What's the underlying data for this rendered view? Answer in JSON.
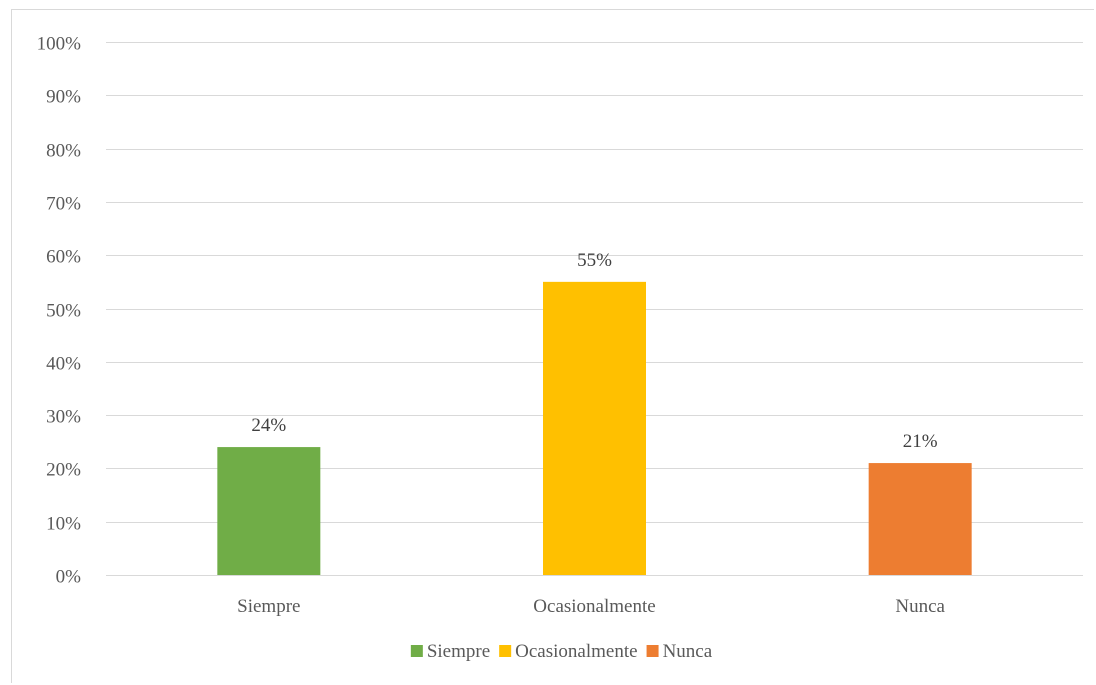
{
  "chart_data": {
    "type": "bar",
    "categories": [
      "Siempre",
      "Ocasionalmente",
      "Nunca"
    ],
    "values": [
      24,
      55,
      21
    ],
    "value_labels": [
      "24%",
      "55%",
      "21%"
    ],
    "colors": [
      "#70ad47",
      "#ffc000",
      "#ed7d31"
    ],
    "ylim": [
      0,
      100
    ],
    "y_ticks": [
      0,
      10,
      20,
      30,
      40,
      50,
      60,
      70,
      80,
      90,
      100
    ],
    "y_tick_labels": [
      "0%",
      "10%",
      "20%",
      "30%",
      "40%",
      "50%",
      "60%",
      "70%",
      "80%",
      "90%",
      "100%"
    ],
    "grid": true,
    "legend_position": "bottom",
    "legend": [
      "Siempre",
      "Ocasionalmente",
      "Nunca"
    ],
    "title": "",
    "xlabel": "",
    "ylabel": ""
  }
}
